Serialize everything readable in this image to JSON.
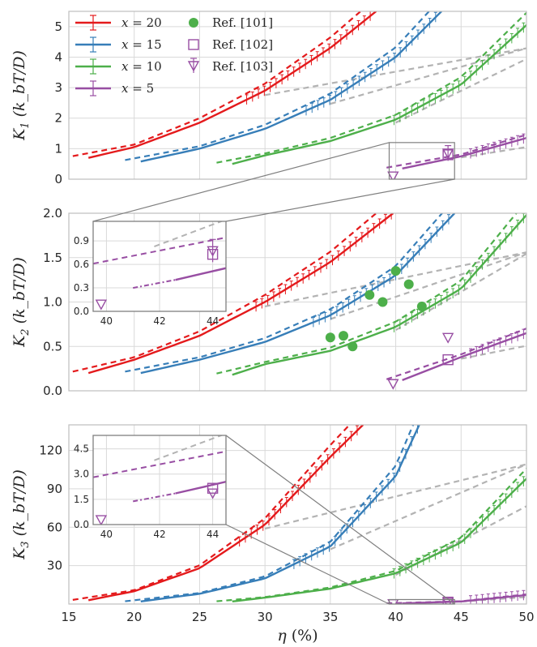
{
  "chart_data": {
    "type": "line",
    "xlabel_symbol": "η",
    "xlabel_unit": "(%)",
    "xlim": [
      15,
      50
    ],
    "xticks": [
      15,
      20,
      25,
      30,
      35,
      40,
      45,
      50
    ],
    "legend": {
      "placement": "top-left of top panel",
      "series_entries": [
        {
          "label": "x = 20",
          "color": "#e41a1c"
        },
        {
          "label": "x = 15",
          "color": "#377eb8"
        },
        {
          "label": "x = 10",
          "color": "#4daf4a"
        },
        {
          "label": "x = 5",
          "color": "#984ea3"
        }
      ],
      "ref_entries": [
        {
          "label": "Ref. [101]",
          "marker": "circle",
          "color": "#4daf4a"
        },
        {
          "label": "Ref. [102]",
          "marker": "square-open",
          "color": "#984ea3"
        },
        {
          "label": "Ref. [103]",
          "marker": "triangle-down-open",
          "color": "#984ea3"
        }
      ]
    },
    "dashed_note": "dashed lines = theory curves in series colors and grey",
    "panels": [
      {
        "ylabel_symbol": "K",
        "ylabel_sub": "1",
        "ylabel_unit": "(k_bT/D)",
        "ylim": [
          0,
          5.5
        ],
        "yticks": [
          0,
          1,
          2,
          3,
          4,
          5
        ],
        "series": [
          {
            "name": "x = 20",
            "x": [
              16.5,
              20,
              25,
              30,
              35,
              38.5
            ],
            "y": [
              0.7,
              1.05,
              1.85,
              2.9,
              4.3,
              5.5
            ]
          },
          {
            "name": "x = 15",
            "x": [
              20.5,
              25,
              30,
              35,
              40,
              43.5
            ],
            "y": [
              0.58,
              1.0,
              1.65,
              2.6,
              4.0,
              5.5
            ]
          },
          {
            "name": "x = 10",
            "x": [
              27.5,
              30,
              35,
              40,
              45,
              50
            ],
            "y": [
              0.5,
              0.78,
              1.25,
              1.95,
              3.1,
              5.05
            ]
          },
          {
            "name": "x = 5",
            "x": [
              40.5,
              45,
              50
            ],
            "y": [
              0.35,
              0.75,
              1.35
            ]
          }
        ],
        "ref_points": [
          {
            "ref": "Ref. [102]",
            "x": 44.0,
            "y": 0.8
          },
          {
            "ref": "Ref. [103]",
            "x": 44.0,
            "y": 0.85,
            "err": 0.25
          },
          {
            "ref": "Ref. [103]",
            "x": 39.8,
            "y": 0.1
          }
        ]
      },
      {
        "ylabel_symbol": "K",
        "ylabel_sub": "2",
        "ylabel_unit": "(k_bT/D)",
        "ylim": [
          0,
          2.0
        ],
        "yticks": [
          0.0,
          0.5,
          1.0,
          1.5,
          2.0
        ],
        "series": [
          {
            "name": "x = 20",
            "x": [
              16.5,
              20,
              25,
              30,
              35,
              39.8
            ],
            "y": [
              0.2,
              0.35,
              0.62,
              1.0,
              1.45,
              2.0
            ]
          },
          {
            "name": "x = 15",
            "x": [
              20.5,
              25,
              30,
              35,
              40,
              44.5
            ],
            "y": [
              0.2,
              0.35,
              0.55,
              0.85,
              1.3,
              2.0
            ]
          },
          {
            "name": "x = 10",
            "x": [
              27.5,
              30,
              35,
              40,
              45,
              50
            ],
            "y": [
              0.18,
              0.3,
              0.45,
              0.72,
              1.15,
              1.98
            ]
          },
          {
            "name": "x = 5",
            "x": [
              40.5,
              45,
              50
            ],
            "y": [
              0.12,
              0.38,
              0.65
            ]
          }
        ],
        "ref_points": [
          {
            "ref": "Ref. [101]",
            "x": 35.0,
            "y": 0.6
          },
          {
            "ref": "Ref. [101]",
            "x": 36.0,
            "y": 0.62
          },
          {
            "ref": "Ref. [101]",
            "x": 36.7,
            "y": 0.5
          },
          {
            "ref": "Ref. [101]",
            "x": 38.0,
            "y": 1.08
          },
          {
            "ref": "Ref. [101]",
            "x": 39.0,
            "y": 1.0
          },
          {
            "ref": "Ref. [101]",
            "x": 40.0,
            "y": 1.35
          },
          {
            "ref": "Ref. [101]",
            "x": 41.0,
            "y": 1.2
          },
          {
            "ref": "Ref. [101]",
            "x": 42.0,
            "y": 0.95
          },
          {
            "ref": "Ref. [102]",
            "x": 44.0,
            "y": 0.35
          },
          {
            "ref": "Ref. [103]",
            "x": 44.0,
            "y": 0.6
          },
          {
            "ref": "Ref. [103]",
            "x": 39.8,
            "y": 0.08
          }
        ],
        "inset": {
          "xlim": [
            39.5,
            44.5
          ],
          "ylim": [
            0.0,
            1.15
          ],
          "xticks": [
            40,
            42,
            44
          ],
          "yticks": [
            0.0,
            0.3,
            0.6,
            0.9
          ],
          "zoom_source_panel": 0,
          "zoom_rect": {
            "x": [
              39.5,
              44.5
            ],
            "y": [
              0.0,
              1.2
            ]
          }
        }
      },
      {
        "ylabel_symbol": "K",
        "ylabel_sub": "3",
        "ylabel_unit": "(k_bT/D)",
        "ylim": [
          0,
          140
        ],
        "yticks": [
          30,
          60,
          90,
          120
        ],
        "series": [
          {
            "name": "x = 20",
            "x": [
              16.5,
              20,
              25,
              30,
              35,
              37.5
            ],
            "y": [
              3,
              10,
              28,
              62,
              115,
              140
            ]
          },
          {
            "name": "x = 15",
            "x": [
              20.5,
              25,
              30,
              35,
              40,
              41.8
            ],
            "y": [
              2,
              8,
              20,
              45,
              100,
              140
            ]
          },
          {
            "name": "x = 10",
            "x": [
              27.5,
              30,
              35,
              40,
              45,
              50
            ],
            "y": [
              2,
              5,
              12,
              24,
              48,
              98
            ]
          },
          {
            "name": "x = 5",
            "x": [
              40.5,
              45,
              50
            ],
            "y": [
              0.5,
              2,
              7
            ]
          }
        ],
        "ref_points": [
          {
            "ref": "Ref. [102]",
            "x": 44.0,
            "y": 1.5
          },
          {
            "ref": "Ref. [103]",
            "x": 44.0,
            "y": 1.3
          },
          {
            "ref": "Ref. [103]",
            "x": 39.8,
            "y": 0.2
          }
        ],
        "inset": {
          "xlim": [
            39.5,
            44.5
          ],
          "ylim": [
            0.0,
            5.3
          ],
          "xticks": [
            40,
            42,
            44
          ],
          "yticks": [
            0.0,
            1.5,
            3.0,
            4.5
          ],
          "zoom_source_panel": 2,
          "zoom_rect": {
            "x": [
              39.5,
              44.5
            ],
            "y": [
              0.0,
              3.5
            ]
          }
        }
      }
    ]
  }
}
